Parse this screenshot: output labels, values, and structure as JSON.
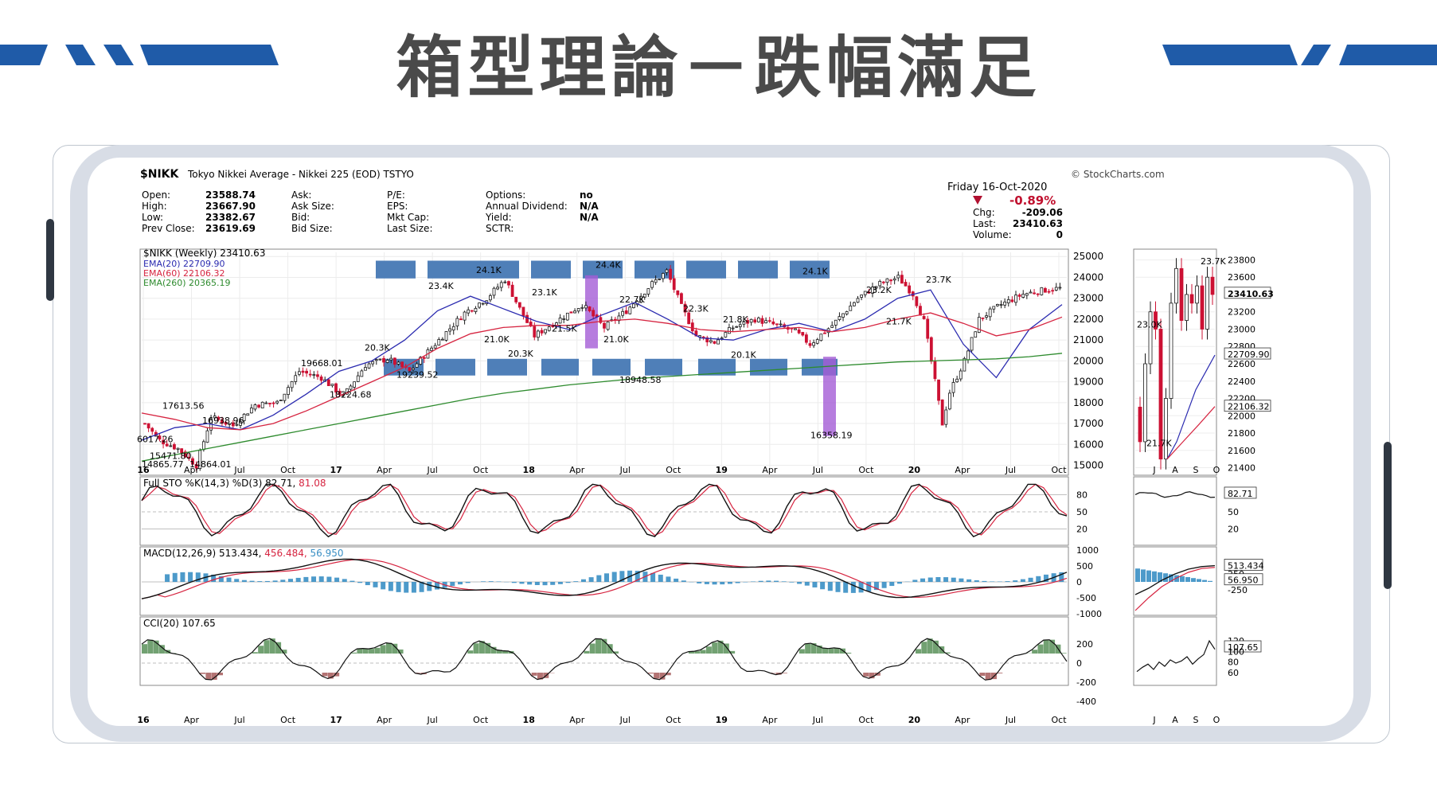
{
  "page": {
    "title": "箱型理論－跌幅滿足"
  },
  "colors": {
    "accent": "#1f5ba8",
    "up": "#1a1a1a",
    "down": "#cc1133",
    "ema20": "#2b2bb0",
    "ema60": "#d62440",
    "ema260": "#2e8b2e",
    "box": "#4f7fb8",
    "highlight": "#a45cd6",
    "histogram": "#3a8fc4",
    "cci_fill_pos": "#4f8a4f",
    "cci_fill_neg": "#a05050",
    "frame": "#d8dde6"
  },
  "header": {
    "symbol": "$NIKK",
    "name": "Tokyo Nikkei Average - Nikkei 225 (EOD) TSTYO",
    "source": "© StockCharts.com",
    "date": "Friday  16-Oct-2020",
    "change_pct": "-0.89%",
    "fields": [
      {
        "label": "Open:",
        "value": "23588.74"
      },
      {
        "label": "High:",
        "value": "23667.90"
      },
      {
        "label": "Low:",
        "value": "23382.67"
      },
      {
        "label": "Prev Close:",
        "value": "23619.69"
      }
    ],
    "fields2": [
      "Ask:",
      "Ask Size:",
      "Bid:",
      "Bid Size:"
    ],
    "fields3": [
      "P/E:",
      "EPS:",
      "Mkt Cap:",
      "Last Size:"
    ],
    "fields4": [
      {
        "label": "Options:",
        "value": "no"
      },
      {
        "label": "Annual Dividend:",
        "value": "N/A"
      },
      {
        "label": "Yield:",
        "value": "N/A"
      },
      {
        "label": "SCTR:",
        "value": ""
      }
    ],
    "fields5": [
      {
        "label": "Chg:",
        "value": "-209.06"
      },
      {
        "label": "Last:",
        "value": "23410.63"
      },
      {
        "label": "Volume:",
        "value": "0"
      }
    ]
  },
  "legend": {
    "main": "$NIKK (Weekly) 23410.63",
    "ema20": "EMA(20) 22709.90",
    "ema60": "EMA(60) 22106.32",
    "ema260": "EMA(260) 20365.19"
  },
  "indicators": {
    "sto": {
      "label": "Full STO %K(14,3) %D(3) 82.71,",
      "value2": "81.08",
      "badge": "82.71"
    },
    "macd": {
      "label": "MACD(12,26,9) 513.434,",
      "v2": "456.484,",
      "v3": "56.950",
      "badge1": "513.434",
      "badge2": "56.950"
    },
    "cci": {
      "label": "CCI(20) 107.65",
      "badge": "107.65"
    }
  },
  "chart_data": {
    "type": "line",
    "title": "$NIKK (Weekly)",
    "yticks": [
      "25000",
      "24000",
      "23000",
      "22000",
      "21000",
      "20000",
      "19000",
      "18000",
      "17000",
      "16000",
      "15000"
    ],
    "xticks": [
      "16",
      "Apr",
      "Jul",
      "Oct",
      "17",
      "Apr",
      "Jul",
      "Oct",
      "18",
      "Apr",
      "Jul",
      "Oct",
      "19",
      "Apr",
      "Jul",
      "Oct",
      "20",
      "Apr",
      "Jul",
      "Oct"
    ],
    "annotations": [
      "6017.26",
      "15471.80",
      "14865.77",
      "14864.01",
      "17613.56",
      "16938.96",
      "19668.01",
      "18224.68",
      "20.3K",
      "19239.52",
      "23.4K",
      "24.1K",
      "21.0K",
      "20.3K",
      "23.1K",
      "21.5K",
      "24.4K",
      "21.0K",
      "22.7K",
      "18948.58",
      "22.3K",
      "21.8K",
      "20.1K",
      "24.1K",
      "16358.19",
      "23.2K",
      "21.7K",
      "23.7K"
    ],
    "series": [
      {
        "name": "EMA(20)",
        "values": [
          16200,
          16800,
          17000,
          16700,
          17400,
          18400,
          19500,
          20000,
          21000,
          22400,
          23100,
          22500,
          21900,
          21500,
          22200,
          22800,
          22000,
          21100,
          21000,
          21500,
          21800,
          21400,
          22000,
          23000,
          23400,
          20800,
          19200,
          21500,
          22700
        ]
      },
      {
        "name": "EMA(60)",
        "values": [
          17500,
          17200,
          16800,
          16700,
          17000,
          17600,
          18300,
          19000,
          19700,
          20600,
          21300,
          21600,
          21700,
          21700,
          21900,
          22000,
          21800,
          21500,
          21400,
          21500,
          21600,
          21400,
          21600,
          22000,
          22300,
          21800,
          21200,
          21500,
          22100
        ]
      },
      {
        "name": "EMA(260)",
        "values": [
          15200,
          15500,
          15800,
          16100,
          16400,
          16700,
          17000,
          17300,
          17600,
          17900,
          18200,
          18450,
          18650,
          18850,
          19000,
          19150,
          19250,
          19350,
          19450,
          19550,
          19650,
          19750,
          19850,
          19950,
          20000,
          20050,
          20100,
          20200,
          20365
        ]
      }
    ],
    "sto_ylabels": [
      "80",
      "50",
      "20"
    ],
    "macd_ylabels": [
      "1000",
      "500",
      "0",
      "-500",
      "-1000"
    ],
    "cci_ylabels": [
      "200",
      "0",
      "-200",
      "-400"
    ],
    "daily": {
      "yticks": [
        "23800",
        "23600",
        "23410.63",
        "23200",
        "23000",
        "22800",
        "22709.90",
        "22600",
        "22400",
        "22200",
        "22106.32",
        "22000",
        "21800",
        "21600",
        "21400"
      ],
      "xticks": [
        "J",
        "A",
        "S",
        "O"
      ],
      "annotations": [
        "23.7K",
        "23.0K",
        "21.7K"
      ],
      "sto_ylabels": [
        "82.71",
        "50",
        "20"
      ],
      "macd_ylabels": [
        "513.434",
        "250",
        "56.950",
        "-250"
      ],
      "cci_ylabels": [
        "120",
        "107.65",
        "100",
        "80",
        "60"
      ]
    }
  }
}
